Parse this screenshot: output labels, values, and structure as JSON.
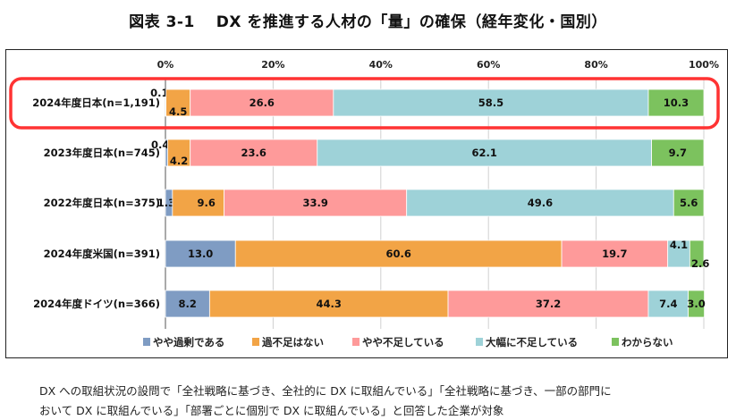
{
  "title": "図表 3-1　 DX を推進する人材の「量」の確保（経年変化・国別）",
  "chart_data": {
    "type": "bar",
    "orientation": "horizontal",
    "stacked": true,
    "percent_stacked": true,
    "xlim": [
      0,
      100
    ],
    "ticks": [
      "0%",
      "20%",
      "40%",
      "60%",
      "80%",
      "100%"
    ],
    "grid": true,
    "legend_position": "bottom",
    "categories": [
      "2024年度日本(n=1,191)",
      "2023年度日本(n=745)",
      "2022年度日本(n=375)",
      "2024年度米国(n=391)",
      "2024年度ドイツ(n=366)"
    ],
    "series": [
      {
        "name": "やや過剰である",
        "color": "#7f9cc3",
        "values": [
          0.1,
          0.4,
          1.3,
          13.0,
          8.2
        ]
      },
      {
        "name": "過不足はない",
        "color": "#f2a446",
        "values": [
          4.5,
          4.2,
          9.6,
          60.6,
          44.3
        ]
      },
      {
        "name": "やや不足している",
        "color": "#fe9a9a",
        "values": [
          26.6,
          23.6,
          33.9,
          19.7,
          37.2
        ]
      },
      {
        "name": "大幅に不足している",
        "color": "#9ed2d8",
        "values": [
          58.5,
          62.1,
          49.6,
          4.1,
          7.4
        ]
      },
      {
        "name": "わからない",
        "color": "#7cc25e",
        "values": [
          10.3,
          9.7,
          5.6,
          2.6,
          3.0
        ]
      }
    ],
    "highlight": {
      "category": "2024年度日本(n=1,191)",
      "color": "#ff3333"
    }
  },
  "footnote": [
    "DX への取組状況の設問で「全社戦略に基づき、全社的に DX に取組んでいる」「全社戦略に基づき、一部の部門に",
    "おいて DX に取組んでいる」「部署ごとに個別で DX に取組んでいる」と回答した企業が対象"
  ]
}
